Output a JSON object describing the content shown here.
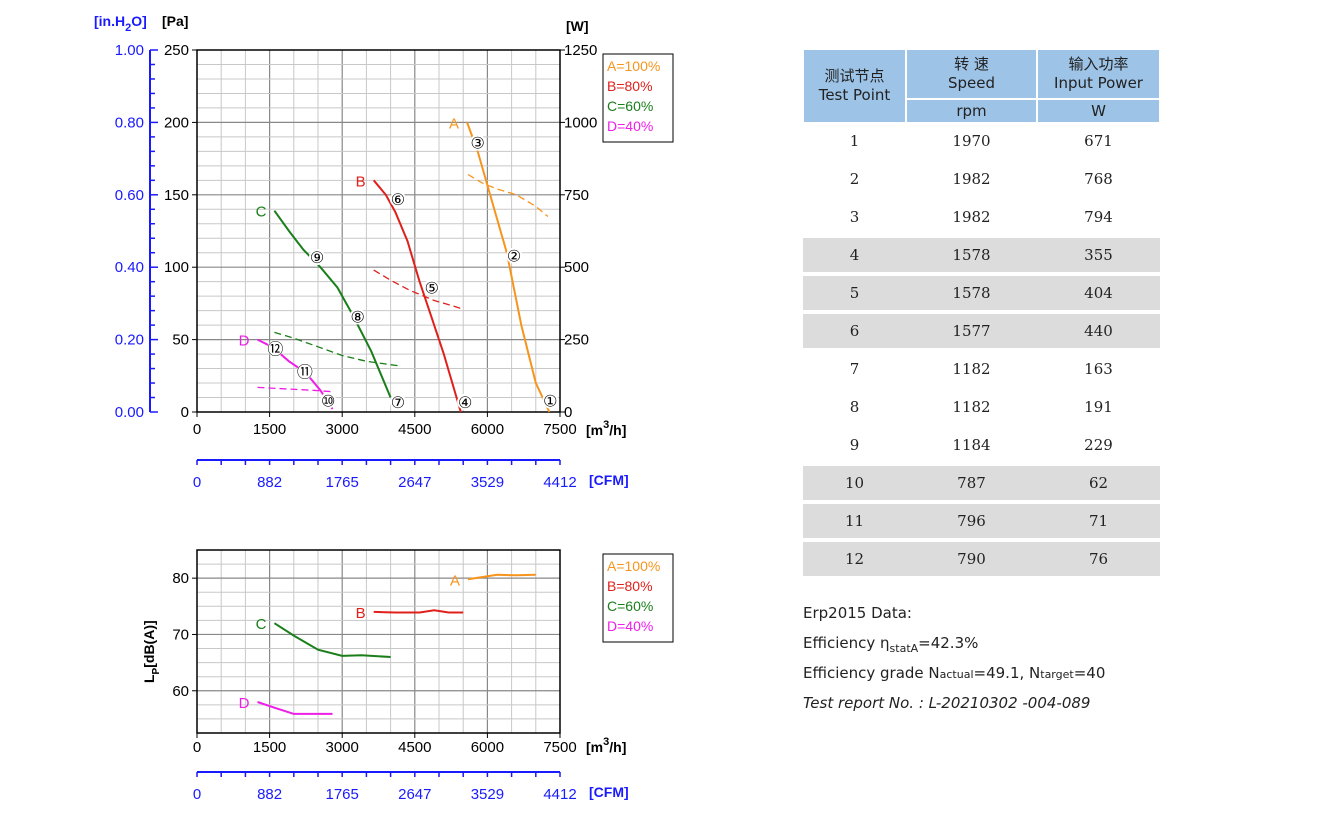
{
  "chart_data": [
    {
      "type": "line",
      "title": "",
      "ylabel_left_outer": "[in.H2O]",
      "ylabel_left": "[Pa]",
      "ylabel_right": "[W]",
      "xlabel": "[m3/h]",
      "xlabel_cfm": "[CFM]",
      "xlim": [
        0,
        7500
      ],
      "ylim_pa": [
        0,
        250
      ],
      "ylim_w": [
        0,
        1250
      ],
      "ylim_inh2o": [
        0,
        1.0
      ],
      "x_ticks": [
        "0",
        "1500",
        "3000",
        "4500",
        "6000",
        "7500"
      ],
      "cfm_ticks": [
        "0",
        "882",
        "1765",
        "2647",
        "3529",
        "4412"
      ],
      "y_ticks_pa": [
        "0",
        "50",
        "100",
        "150",
        "200",
        "250"
      ],
      "y_ticks_w": [
        "0",
        "250",
        "500",
        "750",
        "1000",
        "1250"
      ],
      "y_ticks_inh2o": [
        "0.00",
        "0.20",
        "0.40",
        "0.60",
        "0.80",
        "1.00"
      ],
      "grid": true,
      "legend_position": "top-right",
      "series": [
        {
          "name": "A=100%",
          "curve_label": "A",
          "color": "#f7941d",
          "pressure": [
            [
              5580,
              200
            ],
            [
              5800,
              180
            ],
            [
              6100,
              145
            ],
            [
              6400,
              110
            ],
            [
              6700,
              60
            ],
            [
              7000,
              20
            ],
            [
              7280,
              0
            ]
          ],
          "power_w": [
            [
              5600,
              820
            ],
            [
              5900,
              790
            ],
            [
              6200,
              770
            ],
            [
              6600,
              750
            ],
            [
              7000,
              710
            ],
            [
              7250,
              675
            ]
          ]
        },
        {
          "name": "B=80%",
          "curve_label": "B",
          "color": "#e0201b",
          "pressure": [
            [
              3650,
              160
            ],
            [
              3900,
              150
            ],
            [
              4100,
              138
            ],
            [
              4350,
              118
            ],
            [
              4600,
              90
            ],
            [
              4800,
              70
            ],
            [
              5100,
              40
            ],
            [
              5450,
              0
            ]
          ],
          "power_w": [
            [
              3650,
              490
            ],
            [
              4000,
              455
            ],
            [
              4400,
              420
            ],
            [
              4900,
              385
            ],
            [
              5250,
              368
            ],
            [
              5500,
              355
            ]
          ]
        },
        {
          "name": "C=60%",
          "curve_label": "C",
          "color": "#1a7f1a",
          "pressure": [
            [
              1600,
              139
            ],
            [
              1900,
              125
            ],
            [
              2200,
              112
            ],
            [
              2550,
              100
            ],
            [
              2900,
              86
            ],
            [
              3200,
              68
            ],
            [
              3600,
              42
            ],
            [
              4000,
              10
            ]
          ],
          "power_w": [
            [
              1600,
              275
            ],
            [
              2000,
              255
            ],
            [
              2500,
              225
            ],
            [
              3000,
              195
            ],
            [
              3500,
              175
            ],
            [
              4150,
              160
            ]
          ]
        },
        {
          "name": "D=40%",
          "curve_label": "D",
          "color": "#ee1ee8",
          "pressure": [
            [
              1250,
              50
            ],
            [
              1550,
              45
            ],
            [
              1900,
              35
            ],
            [
              2250,
              27
            ],
            [
              2550,
              15
            ],
            [
              2800,
              2
            ]
          ],
          "power_w": [
            [
              1250,
              85
            ],
            [
              1800,
              80
            ],
            [
              2400,
              75
            ],
            [
              2800,
              70
            ]
          ]
        }
      ],
      "test_points": [
        {
          "label": "①",
          "x": 7300,
          "y": 8
        },
        {
          "label": "②",
          "x": 6550,
          "y": 108
        },
        {
          "label": "③",
          "x": 5800,
          "y": 186
        },
        {
          "label": "④",
          "x": 5540,
          "y": 7
        },
        {
          "label": "⑤",
          "x": 4850,
          "y": 86
        },
        {
          "label": "⑥",
          "x": 4150,
          "y": 147
        },
        {
          "label": "⑦",
          "x": 4150,
          "y": 7
        },
        {
          "label": "⑧",
          "x": 3320,
          "y": 66
        },
        {
          "label": "⑨",
          "x": 2480,
          "y": 107
        },
        {
          "label": "⑩",
          "x": 2710,
          "y": 8
        },
        {
          "label": "⑪",
          "x": 2230,
          "y": 28
        },
        {
          "label": "⑫",
          "x": 1620,
          "y": 44
        }
      ]
    },
    {
      "type": "line",
      "title": "",
      "ylabel": "LP[dB(A)]",
      "xlabel": "[m3/h]",
      "xlabel_cfm": "[CFM]",
      "xlim": [
        0,
        7500
      ],
      "ylim": [
        52.5,
        85
      ],
      "x_ticks": [
        "0",
        "1500",
        "3000",
        "4500",
        "6000",
        "7500"
      ],
      "cfm_ticks": [
        "0",
        "882",
        "1765",
        "2647",
        "3529",
        "4412"
      ],
      "y_ticks": [
        "60",
        "70",
        "80"
      ],
      "grid": true,
      "legend_position": "top-right",
      "series": [
        {
          "name": "A=100%",
          "curve_label": "A",
          "color": "#f7941d",
          "values": [
            [
              5600,
              79.8
            ],
            [
              5900,
              80.2
            ],
            [
              6200,
              80.6
            ],
            [
              6600,
              80.5
            ],
            [
              7000,
              80.6
            ]
          ]
        },
        {
          "name": "B=80%",
          "curve_label": "B",
          "color": "#e0201b",
          "values": [
            [
              3650,
              74.0
            ],
            [
              4100,
              73.9
            ],
            [
              4600,
              73.9
            ],
            [
              4900,
              74.3
            ],
            [
              5200,
              73.9
            ],
            [
              5500,
              73.9
            ]
          ]
        },
        {
          "name": "C=60%",
          "curve_label": "C",
          "color": "#1a7f1a",
          "values": [
            [
              1600,
              72.0
            ],
            [
              2000,
              69.8
            ],
            [
              2500,
              67.3
            ],
            [
              3000,
              66.2
            ],
            [
              3400,
              66.3
            ],
            [
              4000,
              66.0
            ]
          ]
        },
        {
          "name": "D=40%",
          "curve_label": "D",
          "color": "#ee1ee8",
          "values": [
            [
              1250,
              58.0
            ],
            [
              1600,
              57.0
            ],
            [
              2000,
              55.9
            ],
            [
              2400,
              55.9
            ],
            [
              2800,
              55.9
            ]
          ]
        }
      ]
    }
  ],
  "table": {
    "headers": {
      "test_point_cn": "测试节点",
      "test_point_en": "Test Point",
      "speed_cn": "转 速",
      "speed_en": "Speed",
      "speed_unit": "rpm",
      "power_cn": "输入功率",
      "power_en": "Input Power",
      "power_unit": "W"
    },
    "rows": [
      {
        "point": "1",
        "speed": "1970",
        "power": "671"
      },
      {
        "point": "2",
        "speed": "1982",
        "power": "768"
      },
      {
        "point": "3",
        "speed": "1982",
        "power": "794"
      },
      {
        "point": "4",
        "speed": "1578",
        "power": "355"
      },
      {
        "point": "5",
        "speed": "1578",
        "power": "404"
      },
      {
        "point": "6",
        "speed": "1577",
        "power": "440"
      },
      {
        "point": "7",
        "speed": "1182",
        "power": "163"
      },
      {
        "point": "8",
        "speed": "1182",
        "power": "191"
      },
      {
        "point": "9",
        "speed": "1184",
        "power": "229"
      },
      {
        "point": "10",
        "speed": "787",
        "power": "62"
      },
      {
        "point": "11",
        "speed": "796",
        "power": "71"
      },
      {
        "point": "12",
        "speed": "790",
        "power": "76"
      }
    ]
  },
  "erp": {
    "title": "Erp2015 Data:",
    "efficiency_label": "Efficiency η",
    "efficiency_sub": "statA",
    "efficiency_value": "=42.3%",
    "grade_label": "Efficiency grade  N",
    "grade_actual_sub": "actual",
    "grade_actual_value": "=49.1, N",
    "grade_target_sub": "target",
    "grade_target_value": "=40",
    "report": "Test report No. : L-20210302 -004-089"
  }
}
